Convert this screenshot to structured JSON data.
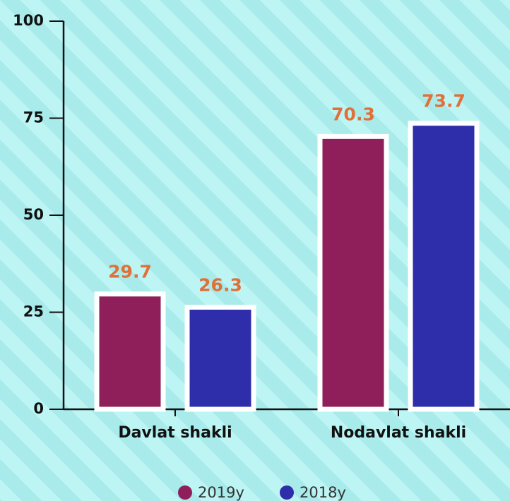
{
  "chart_data": {
    "type": "bar",
    "categories": [
      "Davlat shakli",
      "Nodavlat shakli"
    ],
    "series": [
      {
        "name": "2019y",
        "color": "#8e1f5a",
        "values": [
          29.7,
          70.3
        ]
      },
      {
        "name": "2018y",
        "color": "#2e2eaa",
        "values": [
          26.3,
          73.7
        ]
      }
    ],
    "ylim": [
      0,
      100
    ],
    "yticks": [
      0,
      25,
      50,
      75,
      100
    ]
  }
}
